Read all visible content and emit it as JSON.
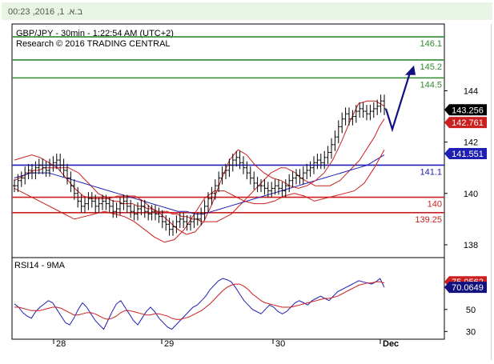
{
  "header": {
    "timestamp": "ב.א. 1, 2016, 00:23"
  },
  "chart_data": [
    {
      "type": "line",
      "title": "GBP/JPY - 30min - 1:22:54 AM (UTC+2)",
      "subtitle": "Research © 2016 TRADING CENTRAL",
      "x_tick_labels": [
        "28",
        "29",
        "30",
        "Dec"
      ],
      "y_ticks": [
        144,
        142,
        140,
        138
      ],
      "y_tick_labels": [
        "144",
        "142",
        "140",
        "138"
      ],
      "ylim": [
        137.5,
        146.6
      ],
      "levels": [
        {
          "label": "146.1",
          "value": 146.1,
          "color": "#2e8b2e"
        },
        {
          "label": "145.2",
          "value": 145.2,
          "color": "#2e8b2e"
        },
        {
          "label": "144.5",
          "value": 144.5,
          "color": "#2e8b2e"
        },
        {
          "label": "141.1",
          "value": 141.1,
          "color": "#1f1fb4"
        },
        {
          "label": "140",
          "value": 139.85,
          "color": "#cc1f1f"
        },
        {
          "label": "139.25",
          "value": 139.25,
          "color": "#cc1f1f"
        }
      ],
      "price_tags": [
        {
          "label": "143.256",
          "value": 143.256,
          "bg": "#000000"
        },
        {
          "label": "142.761",
          "value": 142.761,
          "bg": "#cc1f1f"
        },
        {
          "label": "141.551",
          "value": 141.551,
          "bg": "#1f1fb4"
        }
      ],
      "series": [
        {
          "type": "ohlc",
          "color": "#000000",
          "values": [
            140.3,
            140.5,
            140.6,
            140.8,
            140.9,
            140.8,
            141.0,
            141.1,
            141.0,
            140.9,
            141.1,
            141.2,
            141.3,
            141.1,
            140.9,
            140.6,
            140.3,
            140.0,
            139.7,
            139.5,
            139.6,
            139.8,
            139.7,
            139.5,
            139.6,
            139.7,
            139.6,
            139.5,
            139.3,
            139.4,
            139.6,
            139.7,
            139.5,
            139.3,
            139.2,
            139.4,
            139.5,
            139.3,
            139.2,
            139.3,
            139.2,
            139.1,
            138.9,
            138.8,
            138.6,
            138.7,
            138.9,
            139.0,
            138.9,
            138.8,
            138.9,
            139.0,
            139.0,
            139.2,
            139.5,
            139.8,
            140.0,
            140.3,
            140.6,
            140.8,
            140.9,
            141.1,
            141.3,
            141.4,
            141.2,
            141.0,
            140.8,
            140.6,
            140.4,
            140.3,
            140.3,
            140.2,
            140.1,
            140.2,
            140.3,
            140.2,
            140.1,
            140.3,
            140.5,
            140.6,
            140.7,
            140.6,
            140.8,
            140.9,
            141.0,
            141.2,
            141.3,
            141.2,
            141.4,
            141.6,
            141.9,
            142.2,
            142.6,
            142.9,
            143.1,
            142.9,
            143.0,
            143.2,
            143.3,
            143.2,
            143.1,
            143.2,
            143.3,
            143.4,
            143.6,
            143.3
          ]
        },
        {
          "type": "line",
          "name": "",
          "color": "#cc1f1f",
          "values": [
            140.5,
            140.6,
            140.7,
            140.8,
            140.9,
            140.9,
            141.0,
            141.0,
            141.0,
            141.0,
            141.0,
            141.0,
            140.9,
            140.8,
            140.6,
            140.4,
            140.2,
            140.0,
            139.9,
            139.8,
            139.7,
            139.7,
            139.6,
            139.6,
            139.6,
            139.5,
            139.5,
            139.4,
            139.4,
            139.3,
            139.3,
            139.3,
            139.2,
            139.2,
            139.1,
            139.1,
            139.0,
            139.0,
            138.9,
            138.9,
            138.9,
            138.9,
            139.0,
            139.1,
            139.2,
            139.4,
            139.6,
            139.8,
            140.0,
            140.2,
            140.4,
            140.6,
            140.8,
            140.9,
            141.0,
            141.0,
            140.9,
            140.8,
            140.6,
            140.5,
            140.4,
            140.3,
            140.3,
            140.3,
            140.3,
            140.4,
            140.5,
            140.7,
            140.9,
            141.1,
            141.3,
            141.6,
            141.9,
            142.2,
            142.6,
            142.9
          ]
        },
        {
          "type": "line",
          "name": "",
          "color": "#1f1fb4",
          "values": [
            140.6,
            140.7,
            140.8,
            140.8,
            140.8,
            140.7,
            140.6,
            140.5,
            140.4,
            140.3,
            140.2,
            140.1,
            140.0,
            139.9,
            139.8,
            139.7,
            139.6,
            139.5,
            139.4,
            139.3,
            139.3,
            139.2,
            139.2,
            139.3,
            139.4,
            139.5,
            139.6,
            139.7,
            139.8,
            139.9,
            140.0,
            140.1,
            140.2,
            140.3,
            140.4,
            140.5,
            140.6,
            140.7,
            140.8,
            140.9,
            141.0,
            141.1,
            141.3,
            141.5
          ]
        },
        {
          "type": "line",
          "name": "",
          "color": "#cc1f1f",
          "values": [
            141.3,
            141.4,
            141.5,
            141.4,
            141.2,
            141.0,
            140.6,
            140.2,
            139.9,
            139.8,
            139.8,
            139.8,
            139.9,
            139.9,
            139.9,
            139.7,
            139.4,
            139.2,
            138.9,
            138.6,
            138.4,
            138.5,
            138.9,
            139.6,
            140.5,
            141.3,
            141.7,
            141.5,
            141.1,
            140.8,
            140.6,
            140.5,
            140.3,
            140.2,
            140.3,
            140.5,
            140.8,
            141.3,
            142.0,
            142.8,
            143.5,
            143.6,
            143.6,
            143.4
          ]
        },
        {
          "type": "line",
          "name": "",
          "color": "#cc1f1f",
          "values": [
            140.2,
            140.0,
            139.8,
            139.6,
            139.4,
            139.2,
            139.0,
            139.1,
            139.2,
            139.3,
            139.2,
            139.1,
            138.9,
            138.6,
            138.3,
            138.1,
            138.2,
            138.6,
            139.2,
            139.8,
            140.1,
            140.1,
            139.9,
            139.7,
            139.6,
            139.6,
            139.7,
            139.9,
            140.0,
            139.9,
            139.7,
            139.8,
            139.9,
            140.0,
            140.1,
            140.4,
            141.0,
            141.7
          ]
        }
      ],
      "forecast": {
        "values": [
          142.5,
          144.8
        ],
        "color": "#10107e"
      }
    },
    {
      "type": "line",
      "title": "RSI14 - 9MA",
      "y_ticks": [
        50,
        30
      ],
      "y_tick_labels": [
        "50",
        "30"
      ],
      "ylim": [
        23,
        97
      ],
      "price_tags": [
        {
          "label": "75.0562",
          "value": 75.0562,
          "bg": "#cc1f1f"
        },
        {
          "label": "70.0649",
          "value": 70.0649,
          "bg": "#10107e"
        }
      ],
      "series": [
        {
          "type": "line",
          "name": "",
          "color": "#1f1fb4",
          "values": [
            55,
            52,
            47,
            44,
            42,
            48,
            52,
            55,
            58,
            56,
            50,
            44,
            38,
            36,
            42,
            50,
            56,
            52,
            46,
            40,
            36,
            32,
            40,
            48,
            55,
            58,
            52,
            46,
            40,
            36,
            42,
            48,
            52,
            48,
            42,
            38,
            34,
            32,
            36,
            40,
            44,
            48,
            52,
            54,
            58,
            62,
            68,
            72,
            76,
            78,
            77,
            75,
            70,
            64,
            58,
            54,
            50,
            48,
            46,
            50,
            54,
            52,
            48,
            46,
            48,
            52,
            56,
            58,
            56,
            54,
            58,
            60,
            62,
            60,
            58,
            62,
            66,
            68,
            70,
            72,
            74,
            76,
            75,
            74,
            73,
            75,
            78,
            70
          ]
        },
        {
          "type": "line",
          "name": "",
          "color": "#cc1f1f",
          "values": [
            52,
            52,
            51,
            50,
            49,
            49,
            49,
            50,
            51,
            52,
            52,
            51,
            49,
            47,
            45,
            45,
            46,
            47,
            47,
            46,
            44,
            42,
            41,
            42,
            44,
            47,
            49,
            49,
            48,
            47,
            46,
            45,
            45,
            46,
            46,
            45,
            44,
            42,
            41,
            41,
            42,
            43,
            45,
            47,
            49,
            52,
            55,
            59,
            63,
            67,
            70,
            72,
            73,
            73,
            71,
            68,
            64,
            61,
            58,
            56,
            55,
            54,
            53,
            52,
            52,
            52,
            53,
            54,
            55,
            56,
            57,
            58,
            59,
            60,
            60,
            61,
            62,
            64,
            66,
            68,
            70,
            72,
            73,
            74,
            74,
            75,
            75,
            74
          ]
        }
      ]
    }
  ]
}
